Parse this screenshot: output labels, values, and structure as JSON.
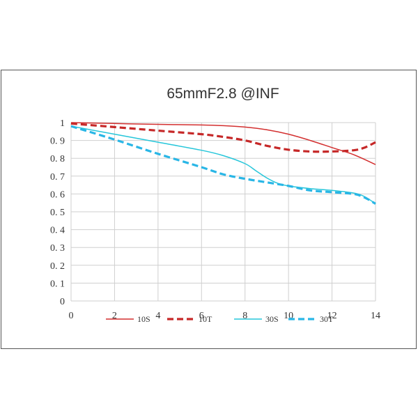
{
  "chart_data": {
    "type": "line",
    "title": "65mmF2.8 @INF",
    "xlabel": "",
    "ylabel": "",
    "xlim": [
      0,
      14
    ],
    "ylim": [
      0,
      1
    ],
    "x_ticks": [
      0,
      2,
      4,
      6,
      8,
      10,
      12,
      14
    ],
    "x_tick_labels": [
      "0",
      "2",
      "4",
      "6",
      "8",
      "10",
      "12",
      "14"
    ],
    "y_ticks": [
      0,
      0.1,
      0.2,
      0.3,
      0.4,
      0.5,
      0.6,
      0.7,
      0.8,
      0.9,
      1
    ],
    "y_tick_labels": [
      "0",
      "0. 1",
      "0. 2",
      "0. 3",
      "0. 4",
      "0. 5",
      "0. 6",
      "0. 7",
      "0. 8",
      "0. 9",
      "1"
    ],
    "grid": true,
    "legend_position": "bottom",
    "series": [
      {
        "name": "10S",
        "color": "#d32f2f",
        "style": "solid",
        "x": [
          0,
          2,
          4,
          6,
          7,
          8,
          9,
          10,
          11,
          12,
          13,
          14
        ],
        "y": [
          1.0,
          0.995,
          0.99,
          0.987,
          0.983,
          0.975,
          0.96,
          0.935,
          0.9,
          0.86,
          0.82,
          0.765
        ]
      },
      {
        "name": "10T",
        "color": "#c62828",
        "style": "dashed",
        "x": [
          0,
          2,
          4,
          6,
          7,
          8,
          9,
          10,
          11,
          12,
          13,
          13.5,
          14
        ],
        "y": [
          0.995,
          0.975,
          0.955,
          0.935,
          0.92,
          0.9,
          0.87,
          0.848,
          0.838,
          0.838,
          0.845,
          0.86,
          0.89
        ]
      },
      {
        "name": "30S",
        "color": "#26c6da",
        "style": "solid",
        "x": [
          0,
          2,
          4,
          6,
          7,
          8,
          8.5,
          9,
          9.5,
          10,
          11,
          12,
          13,
          13.5,
          14
        ],
        "y": [
          0.98,
          0.935,
          0.89,
          0.845,
          0.815,
          0.77,
          0.73,
          0.69,
          0.66,
          0.645,
          0.63,
          0.62,
          0.605,
          0.585,
          0.545
        ]
      },
      {
        "name": "30T",
        "color": "#29b6e6",
        "style": "dashed",
        "x": [
          0,
          2,
          4,
          6,
          7,
          8,
          9,
          10,
          11,
          12,
          13,
          13.5,
          14
        ],
        "y": [
          0.98,
          0.905,
          0.825,
          0.75,
          0.71,
          0.685,
          0.665,
          0.645,
          0.62,
          0.61,
          0.6,
          0.58,
          0.545
        ]
      }
    ]
  }
}
